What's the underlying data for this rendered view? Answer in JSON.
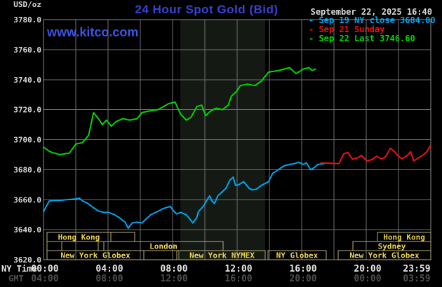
{
  "header": {
    "unit_label": "USD/oz",
    "title": "24 Hour Spot Gold (Bid)",
    "watermark": "www.kitco.com",
    "datetime": "September 22, 2025 16:40"
  },
  "legend": [
    {
      "marker": "-",
      "label": "Sep 19 NY close 3684.00",
      "color": "#00a6f0"
    },
    {
      "marker": "-",
      "label": "Sep 21 Sunday",
      "color": "#ec1212"
    },
    {
      "marker": "-",
      "label": "Sep 22 Last 3746.60",
      "color": "#00d800"
    }
  ],
  "footer": {
    "ny_time_label": "NY Time",
    "gmt_label": "GMT"
  },
  "colors": {
    "background": "#000000",
    "grid": "#6f6f6f",
    "plot_border": "#8c8c8c",
    "session_border": "#b5ae7d",
    "session_text": "#ecd44d",
    "title_blue": "#3544d8",
    "watermark_blue": "#3b55e6",
    "axis_text": "#d9d9d9",
    "gmt_text": "#4e4e4e"
  },
  "chart_data": {
    "type": "line",
    "title": "24 Hour Spot Gold (Bid)",
    "xlabel": "NY Time",
    "ylabel": "USD/oz",
    "x_axis": {
      "range": [
        0,
        24
      ],
      "unit": "hours",
      "gridline_every_h": 2
    },
    "y_axis": {
      "range": [
        3620,
        3780
      ],
      "tick_step": 20
    },
    "y_ticks": [
      {
        "label": "3780.0",
        "v": 3780
      },
      {
        "label": "3760.0",
        "v": 3760
      },
      {
        "label": "3740.0",
        "v": 3740
      },
      {
        "label": "3720.0",
        "v": 3720
      },
      {
        "label": "3700.0",
        "v": 3700
      },
      {
        "label": "3680.0",
        "v": 3680
      },
      {
        "label": "3660.0",
        "v": 3660
      },
      {
        "label": "3640.0",
        "v": 3640
      },
      {
        "label": "3620.0",
        "v": 3620
      }
    ],
    "x_ticks": [
      {
        "h": 0,
        "ny": "00:00",
        "gmt": "04:00"
      },
      {
        "h": 4,
        "ny": "04:00",
        "gmt": "08:00"
      },
      {
        "h": 8,
        "ny": "08:00",
        "gmt": "12:00"
      },
      {
        "h": 12,
        "ny": "12:00",
        "gmt": "16:00"
      },
      {
        "h": 16,
        "ny": "16:00",
        "gmt": "20:00"
      },
      {
        "h": 20,
        "ny": "20:00",
        "gmt": "00:00"
      },
      {
        "h": 24,
        "ny": "23:59",
        "gmt": "03:59"
      }
    ],
    "shaded_region": {
      "from_h": 8.48,
      "to_h": 13.74,
      "color": "#141a13"
    },
    "sessions": [
      {
        "row": 1,
        "label": "Hong Kong",
        "from_h": 0.22,
        "to_h": 4.17
      },
      {
        "row": 1,
        "label": "",
        "from_h": 4.17,
        "to_h": 5.65
      },
      {
        "row": 1,
        "label": "Hong Kong",
        "from_h": 20.7,
        "to_h": 24
      },
      {
        "row": 2,
        "label": "",
        "from_h": 0.22,
        "to_h": 1.13
      },
      {
        "row": 2,
        "label": "",
        "from_h": 1.13,
        "to_h": 3.39
      },
      {
        "row": 2,
        "label": "London",
        "from_h": 3.74,
        "to_h": 11.13
      },
      {
        "row": 2,
        "label": "Sydney",
        "from_h": 19.17,
        "to_h": 24
      },
      {
        "row": 3,
        "label": "New York Globex",
        "from_h": 0.22,
        "to_h": 6.22
      },
      {
        "row": 3,
        "label": "",
        "from_h": 6.22,
        "to_h": 8.26
      },
      {
        "row": 3,
        "label": "New York NYMEX",
        "from_h": 8.39,
        "to_h": 13.74
      },
      {
        "row": 3,
        "label": "NY Globex",
        "from_h": 13.91,
        "to_h": 17.52
      },
      {
        "row": 3,
        "label": "New York Globex",
        "from_h": 18.26,
        "to_h": 24
      }
    ],
    "series": [
      {
        "id": "sep19-ny-close",
        "name": "Sep 19 NY close",
        "close": 3684.0,
        "color": "#00a6f0",
        "points": [
          [
            0,
            3652
          ],
          [
            0.2,
            3656
          ],
          [
            0.35,
            3659
          ],
          [
            0.6,
            3659.5
          ],
          [
            1.0,
            3659.5
          ],
          [
            1.45,
            3660
          ],
          [
            2.0,
            3660.5
          ],
          [
            2.2,
            3661
          ],
          [
            2.45,
            3659
          ],
          [
            2.75,
            3657.5
          ],
          [
            3.05,
            3655
          ],
          [
            3.4,
            3652.5
          ],
          [
            3.75,
            3651.5
          ],
          [
            4.05,
            3651.5
          ],
          [
            4.4,
            3650
          ],
          [
            4.7,
            3648
          ],
          [
            5.05,
            3645
          ],
          [
            5.25,
            3641
          ],
          [
            5.5,
            3644.5
          ],
          [
            5.8,
            3645
          ],
          [
            6.1,
            3644.5
          ],
          [
            6.35,
            3647
          ],
          [
            6.65,
            3650
          ],
          [
            7.05,
            3652
          ],
          [
            7.4,
            3654
          ],
          [
            7.85,
            3655.5
          ],
          [
            8.1,
            3652
          ],
          [
            8.25,
            3650.5
          ],
          [
            8.5,
            3651.5
          ],
          [
            8.85,
            3650
          ],
          [
            9.15,
            3646
          ],
          [
            9.25,
            3644.5
          ],
          [
            9.5,
            3648
          ],
          [
            9.6,
            3652
          ],
          [
            9.9,
            3655.5
          ],
          [
            10.2,
            3661
          ],
          [
            10.3,
            3662.5
          ],
          [
            10.45,
            3659
          ],
          [
            10.6,
            3657.5
          ],
          [
            10.8,
            3662.5
          ],
          [
            11.1,
            3665.5
          ],
          [
            11.3,
            3667.5
          ],
          [
            11.55,
            3673
          ],
          [
            11.75,
            3675
          ],
          [
            11.9,
            3669.5
          ],
          [
            12.1,
            3670
          ],
          [
            12.4,
            3672
          ],
          [
            12.75,
            3667.5
          ],
          [
            12.95,
            3666.5
          ],
          [
            13.2,
            3667
          ],
          [
            13.5,
            3669.5
          ],
          [
            13.95,
            3672
          ],
          [
            14.2,
            3677.5
          ],
          [
            14.55,
            3680
          ],
          [
            14.9,
            3682.5
          ],
          [
            15.25,
            3683.5
          ],
          [
            15.55,
            3684
          ],
          [
            15.8,
            3685
          ],
          [
            16.1,
            3683.5
          ],
          [
            16.3,
            3684.5
          ],
          [
            16.55,
            3680
          ],
          [
            16.8,
            3681.5
          ],
          [
            17.0,
            3683.5
          ],
          [
            17.4,
            3684
          ]
        ]
      },
      {
        "id": "sep21-sunday",
        "name": "Sep 21 Sunday",
        "color": "#ec1212",
        "points": [
          [
            17.2,
            3684.5
          ],
          [
            17.7,
            3684.3
          ],
          [
            18.3,
            3684
          ],
          [
            18.6,
            3690.5
          ],
          [
            18.85,
            3691.5
          ],
          [
            19.15,
            3687
          ],
          [
            19.5,
            3688
          ],
          [
            19.7,
            3689.5
          ],
          [
            20.05,
            3685.8
          ],
          [
            20.35,
            3686.7
          ],
          [
            20.65,
            3689
          ],
          [
            20.9,
            3687.2
          ],
          [
            21.15,
            3688
          ],
          [
            21.5,
            3694.2
          ],
          [
            21.75,
            3692
          ],
          [
            21.95,
            3689.5
          ],
          [
            22.2,
            3687.2
          ],
          [
            22.5,
            3689
          ],
          [
            22.75,
            3692
          ],
          [
            22.95,
            3685.8
          ],
          [
            23.25,
            3688
          ],
          [
            23.5,
            3689.5
          ],
          [
            23.75,
            3692
          ],
          [
            23.98,
            3696
          ]
        ]
      },
      {
        "id": "sep22-last",
        "name": "Sep 22 Last",
        "last": 3746.6,
        "color": "#00d800",
        "points": [
          [
            0,
            3695
          ],
          [
            0.4,
            3692
          ],
          [
            1.0,
            3690
          ],
          [
            1.6,
            3691
          ],
          [
            2.0,
            3697
          ],
          [
            2.4,
            3698
          ],
          [
            2.8,
            3703
          ],
          [
            3.1,
            3718
          ],
          [
            3.4,
            3714
          ],
          [
            3.65,
            3710
          ],
          [
            3.9,
            3713
          ],
          [
            4.2,
            3709
          ],
          [
            4.5,
            3712
          ],
          [
            4.9,
            3714
          ],
          [
            5.35,
            3713
          ],
          [
            5.8,
            3714
          ],
          [
            6.1,
            3718
          ],
          [
            6.5,
            3719
          ],
          [
            7.1,
            3720
          ],
          [
            7.75,
            3724
          ],
          [
            8.15,
            3725
          ],
          [
            8.5,
            3717
          ],
          [
            8.85,
            3713
          ],
          [
            9.15,
            3715
          ],
          [
            9.5,
            3722
          ],
          [
            9.8,
            3723
          ],
          [
            10.05,
            3716
          ],
          [
            10.35,
            3719
          ],
          [
            10.7,
            3721
          ],
          [
            11.1,
            3720
          ],
          [
            11.45,
            3723
          ],
          [
            11.65,
            3729
          ],
          [
            11.95,
            3732
          ],
          [
            12.2,
            3736
          ],
          [
            12.65,
            3737
          ],
          [
            13.1,
            3736
          ],
          [
            13.5,
            3739
          ],
          [
            13.95,
            3745
          ],
          [
            14.55,
            3746
          ],
          [
            15.25,
            3748
          ],
          [
            15.65,
            3744
          ],
          [
            16.1,
            3747
          ],
          [
            16.45,
            3748
          ],
          [
            16.65,
            3746
          ],
          [
            16.85,
            3747
          ]
        ]
      }
    ]
  }
}
